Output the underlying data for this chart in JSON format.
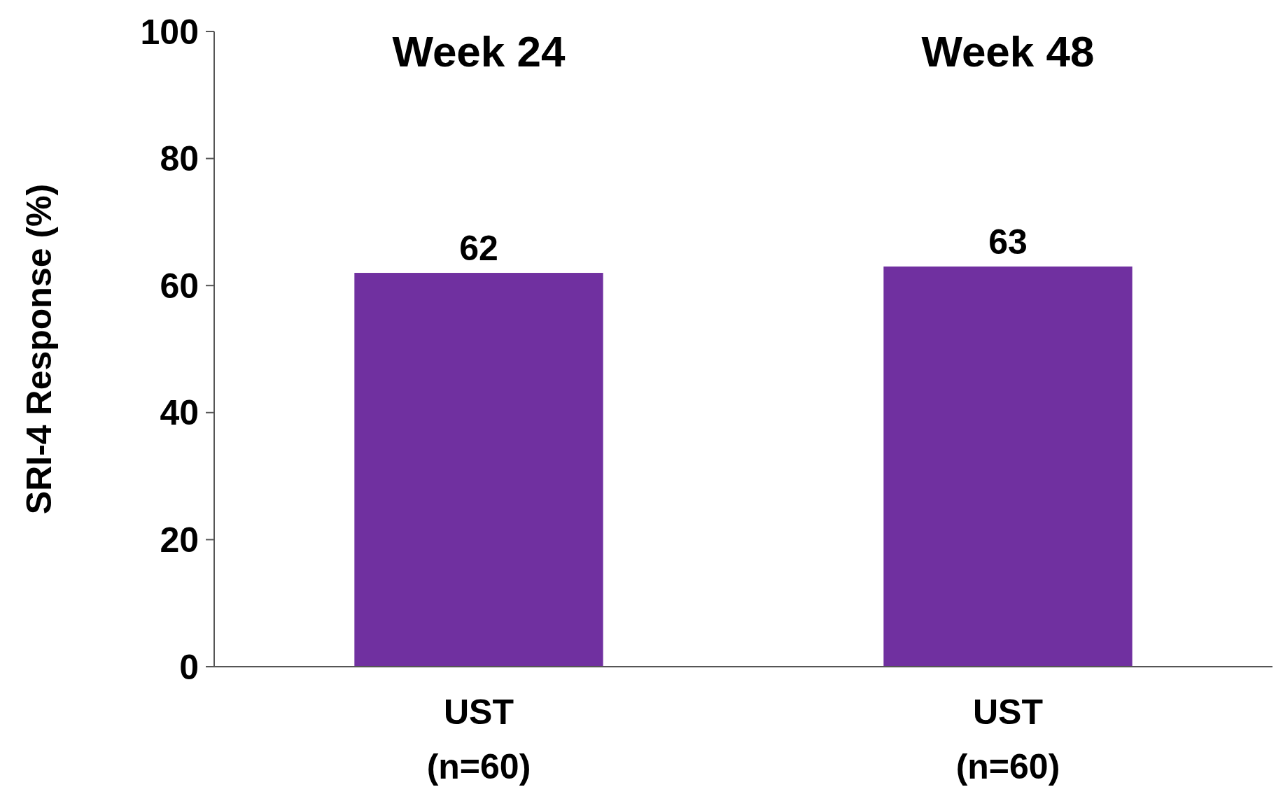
{
  "chart_data": {
    "type": "bar",
    "ylabel": "SRI-4 Response (%)",
    "categories": [
      "UST\n(n=60)",
      "UST\n(n=60)"
    ],
    "values": [
      62,
      63
    ],
    "color": "#7030a0",
    "ylim": [
      0,
      100
    ],
    "yticks": [
      0,
      20,
      40,
      60,
      80,
      100
    ],
    "grid": false,
    "data_labels": true,
    "annotations": [
      "Week 24",
      "Week 48"
    ]
  }
}
